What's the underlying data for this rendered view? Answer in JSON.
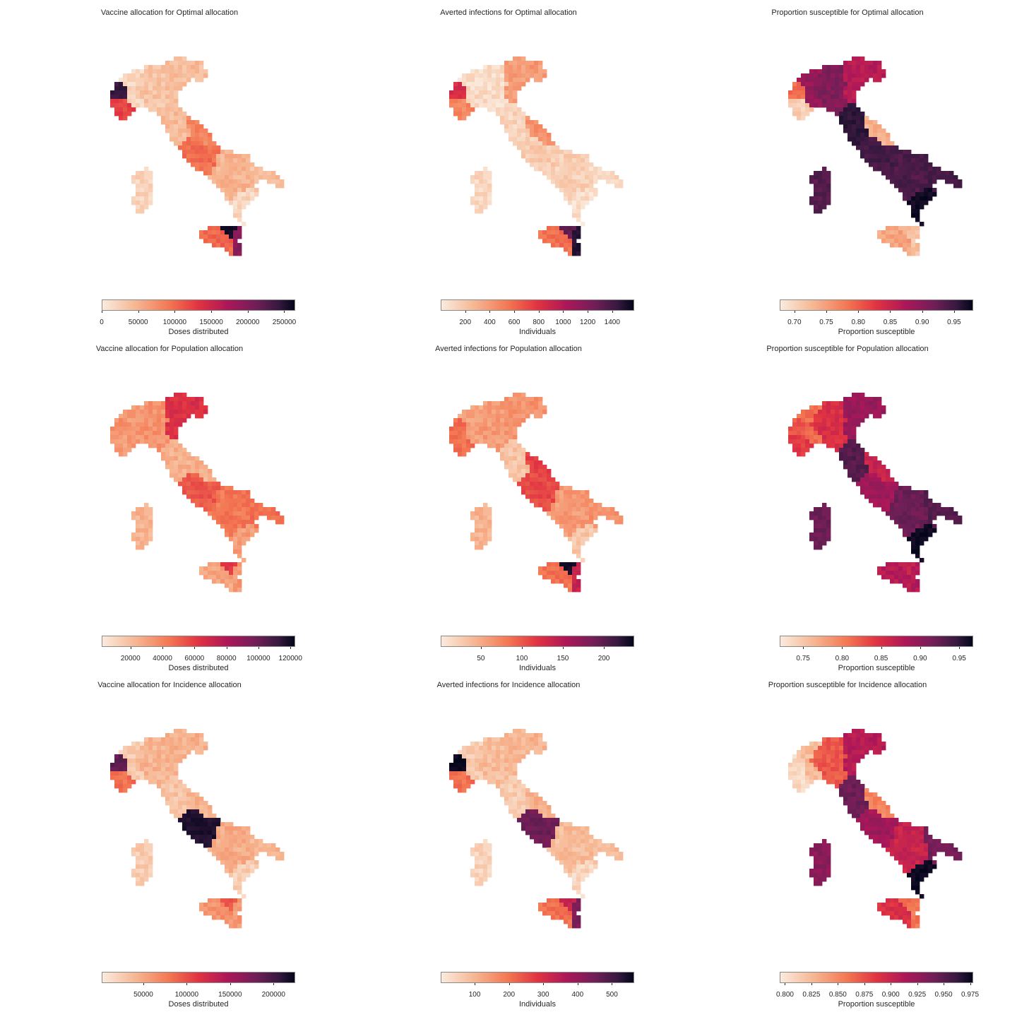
{
  "colormap": [
    "#faebdd",
    "#f6b48f",
    "#f37651",
    "#e13342",
    "#ad1759",
    "#701f57",
    "#35193e",
    "#03051a"
  ],
  "panels": [
    {
      "title": "Vaccine allocation for Optimal allocation",
      "label": "Doses distributed",
      "min": 0,
      "max": 265000,
      "ticks": [
        {
          "v": 0,
          "t": "0"
        },
        {
          "v": 50000,
          "t": "50000"
        },
        {
          "v": 100000,
          "t": "100000"
        },
        {
          "v": 150000,
          "t": "150000"
        },
        {
          "v": 200000,
          "t": "200000"
        },
        {
          "v": 250000,
          "t": "250000"
        }
      ],
      "base": 0.07,
      "regions": {
        "north": 0.1,
        "ne": 0.12,
        "nw": 0.05,
        "aosta": 0.85,
        "piedmont_s": 0.4,
        "adriatic": 0.25,
        "center": 0.12,
        "lazio": 0.3,
        "south": 0.14,
        "heel": 0.12,
        "toe": 0.06,
        "sardinia": 0.06,
        "sicily": 0.32,
        "sicily_ne": 0.95,
        "sicily_e": 0.65
      }
    },
    {
      "title": "Averted infections for Optimal allocation",
      "label": "Individuals",
      "min": 0,
      "max": 1580,
      "ticks": [
        {
          "v": 200,
          "t": "200"
        },
        {
          "v": 400,
          "t": "400"
        },
        {
          "v": 600,
          "t": "600"
        },
        {
          "v": 800,
          "t": "800"
        },
        {
          "v": 1000,
          "t": "1000"
        },
        {
          "v": 1200,
          "t": "1200"
        },
        {
          "v": 1400,
          "t": "1400"
        }
      ],
      "base": 0.04,
      "regions": {
        "north": 0.04,
        "ne": 0.2,
        "nw": 0.04,
        "aosta": 0.45,
        "piedmont_s": 0.25,
        "adriatic": 0.22,
        "center": 0.06,
        "lazio": 0.08,
        "south": 0.07,
        "heel": 0.05,
        "toe": 0.04,
        "sardinia": 0.05,
        "sicily": 0.3,
        "sicily_ne": 0.75,
        "sicily_e": 0.9
      }
    },
    {
      "title": "Proportion susceptible for Optimal allocation",
      "label": "Proportion susceptible",
      "min": 0.677,
      "max": 0.98,
      "ticks": [
        {
          "v": 0.7,
          "t": "0.70"
        },
        {
          "v": 0.75,
          "t": "0.75"
        },
        {
          "v": 0.8,
          "t": "0.80"
        },
        {
          "v": 0.85,
          "t": "0.85"
        },
        {
          "v": 0.9,
          "t": "0.90"
        },
        {
          "v": 0.95,
          "t": "0.95"
        }
      ],
      "base": 0.75,
      "regions": {
        "north": 0.68,
        "ne": 0.55,
        "nw": 0.62,
        "aosta": 0.3,
        "piedmont_s": 0.08,
        "adriatic": 0.15,
        "center": 0.88,
        "lazio": 0.82,
        "south": 0.8,
        "heel": 0.82,
        "toe": 0.97,
        "sardinia": 0.78,
        "sicily": 0.18,
        "sicily_ne": 0.12,
        "sicily_e": 0.1
      }
    },
    {
      "title": "Vaccine allocation for Population allocation",
      "label": "Doses distributed",
      "min": 2000,
      "max": 123000,
      "ticks": [
        {
          "v": 20000,
          "t": "20000"
        },
        {
          "v": 40000,
          "t": "40000"
        },
        {
          "v": 60000,
          "t": "60000"
        },
        {
          "v": 80000,
          "t": "80000"
        },
        {
          "v": 100000,
          "t": "100000"
        },
        {
          "v": 120000,
          "t": "120000"
        }
      ],
      "base": 0.18,
      "regions": {
        "north": 0.22,
        "ne": 0.45,
        "nw": 0.2,
        "aosta": 0.22,
        "piedmont_s": 0.2,
        "adriatic": 0.15,
        "center": 0.15,
        "lazio": 0.35,
        "south": 0.28,
        "heel": 0.3,
        "toe": 0.2,
        "sardinia": 0.14,
        "sicily": 0.18,
        "sicily_ne": 0.42,
        "sicily_e": 0.2
      }
    },
    {
      "title": "Averted infections for Population allocation",
      "label": "Individuals",
      "min": 1,
      "max": 237,
      "ticks": [
        {
          "v": 50,
          "t": "50"
        },
        {
          "v": 100,
          "t": "100"
        },
        {
          "v": 150,
          "t": "150"
        },
        {
          "v": 200,
          "t": "200"
        }
      ],
      "base": 0.14,
      "regions": {
        "north": 0.2,
        "ne": 0.22,
        "nw": 0.18,
        "aosta": 0.3,
        "piedmont_s": 0.3,
        "adriatic": 0.4,
        "center": 0.1,
        "lazio": 0.38,
        "south": 0.2,
        "heel": 0.22,
        "toe": 0.1,
        "sardinia": 0.14,
        "sicily": 0.3,
        "sicily_ne": 0.95,
        "sicily_e": 0.5
      }
    },
    {
      "title": "Proportion susceptible for Population allocation",
      "label": "Proportion susceptible",
      "min": 0.72,
      "max": 0.968,
      "ticks": [
        {
          "v": 0.75,
          "t": "0.75"
        },
        {
          "v": 0.8,
          "t": "0.80"
        },
        {
          "v": 0.85,
          "t": "0.85"
        },
        {
          "v": 0.9,
          "t": "0.90"
        },
        {
          "v": 0.95,
          "t": "0.95"
        }
      ],
      "base": 0.65,
      "regions": {
        "north": 0.45,
        "ne": 0.62,
        "nw": 0.3,
        "aosta": 0.35,
        "piedmont_s": 0.42,
        "adriatic": 0.5,
        "center": 0.78,
        "lazio": 0.6,
        "south": 0.72,
        "heel": 0.78,
        "toe": 0.98,
        "sardinia": 0.72,
        "sicily": 0.55,
        "sicily_ne": 0.5,
        "sicily_e": 0.55
      }
    },
    {
      "title": "Vaccine allocation for Incidence allocation",
      "label": "Doses distributed",
      "min": 2000,
      "max": 225000,
      "ticks": [
        {
          "v": 50000,
          "t": "50000"
        },
        {
          "v": 100000,
          "t": "100000"
        },
        {
          "v": 150000,
          "t": "150000"
        },
        {
          "v": 200000,
          "t": "200000"
        }
      ],
      "base": 0.12,
      "regions": {
        "north": 0.14,
        "ne": 0.15,
        "nw": 0.08,
        "aosta": 0.75,
        "piedmont_s": 0.3,
        "adriatic": 0.14,
        "center": 0.1,
        "lazio": 0.92,
        "south": 0.16,
        "heel": 0.14,
        "toe": 0.08,
        "sardinia": 0.08,
        "sicily": 0.22,
        "sicily_ne": 0.35,
        "sicily_e": 0.2
      }
    },
    {
      "title": "Averted infections for Incidence allocation",
      "label": "Individuals",
      "min": 1,
      "max": 565,
      "ticks": [
        {
          "v": 100,
          "t": "100"
        },
        {
          "v": 200,
          "t": "200"
        },
        {
          "v": 300,
          "t": "300"
        },
        {
          "v": 400,
          "t": "400"
        },
        {
          "v": 500,
          "t": "500"
        }
      ],
      "base": 0.1,
      "regions": {
        "north": 0.12,
        "ne": 0.14,
        "nw": 0.08,
        "aosta": 0.98,
        "piedmont_s": 0.3,
        "adriatic": 0.15,
        "center": 0.08,
        "lazio": 0.72,
        "south": 0.12,
        "heel": 0.12,
        "toe": 0.06,
        "sardinia": 0.06,
        "sicily": 0.3,
        "sicily_ne": 0.5,
        "sicily_e": 0.68
      }
    },
    {
      "title": "Proportion susceptible for Incidence allocation",
      "label": "Proportion susceptible",
      "min": 0.795,
      "max": 0.978,
      "ticks": [
        {
          "v": 0.8,
          "t": "0.800"
        },
        {
          "v": 0.825,
          "t": "0.825"
        },
        {
          "v": 0.85,
          "t": "0.850"
        },
        {
          "v": 0.875,
          "t": "0.875"
        },
        {
          "v": 0.9,
          "t": "0.900"
        },
        {
          "v": 0.925,
          "t": "0.925"
        },
        {
          "v": 0.95,
          "t": "0.950"
        },
        {
          "v": 0.975,
          "t": "0.975"
        }
      ],
      "base": 0.45,
      "regions": {
        "north": 0.35,
        "ne": 0.55,
        "nw": 0.12,
        "aosta": 0.05,
        "piedmont_s": 0.05,
        "adriatic": 0.25,
        "center": 0.72,
        "lazio": 0.6,
        "south": 0.5,
        "heel": 0.7,
        "toe": 0.98,
        "sardinia": 0.65,
        "sicily": 0.45,
        "sicily_ne": 0.3,
        "sicily_e": 0.28
      }
    }
  ]
}
